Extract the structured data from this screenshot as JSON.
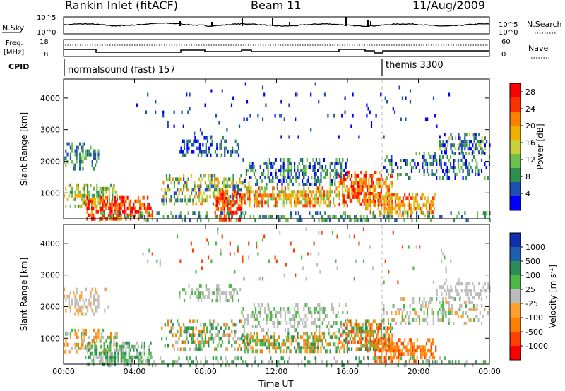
{
  "header": {
    "station": "Rankin Inlet (fitACF)",
    "beam": "Beam 11",
    "date": "11/Aug/2009"
  },
  "noise_panel": {
    "left_label": "N.Sky",
    "right_label": "N.Search",
    "y_ticks_left": [
      "10^5",
      "10^0"
    ],
    "y_ticks_right": [
      "10^5",
      "10^0"
    ]
  },
  "freq_panel": {
    "left_label_line1": "Freq.",
    "left_label_line2": "[MHz]",
    "right_label": "Nave",
    "left_ticks": [
      "18",
      "8"
    ],
    "right_ticks": [
      "60",
      "0"
    ]
  },
  "cpid_panel": {
    "label": "CPID",
    "segments": [
      "normalsound (fast) 157",
      "themis 3300"
    ]
  },
  "colors": {
    "power_scale": [
      "#0000ff",
      "#1f4fb0",
      "#2f8f4f",
      "#6fbf4f",
      "#c8d03a",
      "#f0b000",
      "#ff7f00",
      "#ff3000",
      "#ff0000"
    ],
    "velocity_scale": [
      "#ff0000",
      "#ff4000",
      "#ff8000",
      "#ffa030",
      "#bcbcbc",
      "#4cb848",
      "#2e8b57",
      "#1f5fb0",
      "#1030b0"
    ]
  },
  "chart_data": [
    {
      "type": "heatmap",
      "title": "",
      "xlabel": "",
      "ylabel": "Slant Range [km]",
      "x_ticks": [
        "00:00",
        "04:00",
        "08:00",
        "12:00",
        "16:00",
        "20:00",
        "00:00"
      ],
      "y_ticks": [
        1000,
        2000,
        3000,
        4000
      ],
      "ylim": [
        180,
        4600
      ],
      "colorbar_label": "Power [dB]",
      "colorbar_ticks": [
        4,
        8,
        12,
        16,
        20,
        24,
        28
      ],
      "colorbar_range": [
        0,
        30
      ]
    },
    {
      "type": "heatmap",
      "title": "",
      "xlabel": "Time UT",
      "ylabel": "Slant Range [km]",
      "x_ticks": [
        "00:00",
        "04:00",
        "08:00",
        "12:00",
        "16:00",
        "20:00",
        "00:00"
      ],
      "y_ticks": [
        1000,
        2000,
        3000,
        4000
      ],
      "ylim": [
        180,
        4600
      ],
      "colorbar_label": "Velocity [m s",
      "colorbar_label_sup": "-1",
      "colorbar_label_close": "]",
      "colorbar_ticks": [
        1000,
        500,
        100,
        25,
        -25,
        -100,
        -500,
        -1000
      ],
      "colorbar_range": [
        -1000,
        1000
      ]
    }
  ]
}
